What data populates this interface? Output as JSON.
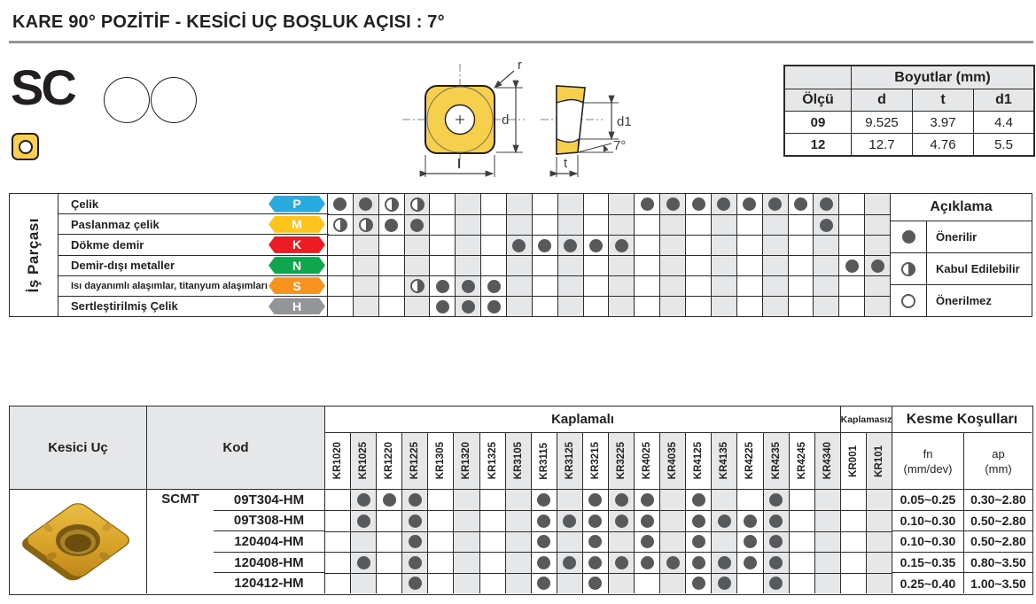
{
  "page_title": "KARE 90° POZİTİF - KESİCİ UÇ BOŞLUK AÇISI : 7°",
  "family": {
    "code": "SC"
  },
  "drawing_labels": {
    "r": "r",
    "d": "d",
    "l": "l",
    "d1": "d1",
    "t": "t",
    "angle": "7°"
  },
  "dimensions_table": {
    "title": "Boyutlar (mm)",
    "size_col": "Ölçü",
    "cols": [
      "d",
      "t",
      "d1"
    ],
    "rows": [
      {
        "size": "09",
        "d": "9.525",
        "t": "3.97",
        "d1": "4.4"
      },
      {
        "size": "12",
        "d": "12.7",
        "t": "4.76",
        "d1": "5.5"
      }
    ]
  },
  "grades": {
    "coated": [
      "KR1020",
      "KR1025",
      "KR1220",
      "KR1225",
      "KR1305",
      "KR1320",
      "KR1325",
      "KR3105",
      "KR3115",
      "KR3125",
      "KR3215",
      "KR3225",
      "KR4025",
      "KR4035",
      "KR4125",
      "KR4135",
      "KR4225",
      "KR4235",
      "KR4245",
      "KR4340"
    ],
    "uncoated": [
      "KR001",
      "KR101"
    ]
  },
  "materials_table": {
    "side_label": "İş Parçası",
    "mark_key": {
      "F": "filled = Önerilir",
      "H": "half = Kabul Edilebilir",
      "O": "open = Önerilmez",
      ".": "empty"
    },
    "rows": [
      {
        "name": "Çelik",
        "letter": "P",
        "color": "#29abe2",
        "marks": "FFHH........FFFFFFFF.."
      },
      {
        "name": "Paslanmaz çelik",
        "letter": "M",
        "color": "#ffc31e",
        "marks": "HHFF...............F.."
      },
      {
        "name": "Dökme demir",
        "letter": "K",
        "color": "#ed1c24",
        "marks": ".......FFFFF.........."
      },
      {
        "name": "Demir-dışı metaller",
        "letter": "N",
        "color": "#0fa64e",
        "marks": "....................FF"
      },
      {
        "name": "Isı dayanımlı alaşımlar, titanyum alaşımları",
        "letter": "S",
        "color": "#f6921e",
        "marks": "...HFFF..............."
      },
      {
        "name": "Sertleştirilmiş Çelik",
        "letter": "H",
        "color": "#939598",
        "marks": "....FFF..............."
      }
    ],
    "legend": {
      "title": "Açıklama",
      "items": [
        {
          "symbol": "F",
          "label": "Önerilir"
        },
        {
          "symbol": "H",
          "label": "Kabul Edilebilir"
        },
        {
          "symbol": "O",
          "label": "Önerilmez"
        }
      ]
    }
  },
  "cutting_table": {
    "headers": {
      "insert": "Kesici Uç",
      "code": "Kod",
      "coated": "Kaplamalı",
      "uncoated": "Kaplamasız",
      "conditions": "Kesme Koşulları",
      "fn_label": "fn",
      "fn_unit": "(mm/dev)",
      "ap_label": "ap",
      "ap_unit": "(mm)"
    },
    "series": "SCMT",
    "rows": [
      {
        "code": "09T304-HM",
        "marks": ".FFF....F.FFF.F..F....",
        "fn": "0.05~0.25",
        "ap": "0.30~2.80"
      },
      {
        "code": "09T308-HM",
        "marks": ".F.F....FFFFF.FFFF....",
        "fn": "0.10~0.30",
        "ap": "0.50~2.80"
      },
      {
        "code": "120404-HM",
        "marks": "...F....F.F.F.F.FF....",
        "fn": "0.10~0.30",
        "ap": "0.50~2.80"
      },
      {
        "code": "120408-HM",
        "marks": ".F.F....FFFFFFFFFF....",
        "fn": "0.15~0.35",
        "ap": "0.80~3.50"
      },
      {
        "code": "120412-HM",
        "marks": "...F....F.F...FF.F....",
        "fn": "0.25~0.40",
        "ap": "1.00~3.50"
      }
    ]
  },
  "colors": {
    "insert_yellow": "#f6cf4d",
    "dot_gray": "#58595b",
    "shade_gray": "#e6e7e8"
  }
}
